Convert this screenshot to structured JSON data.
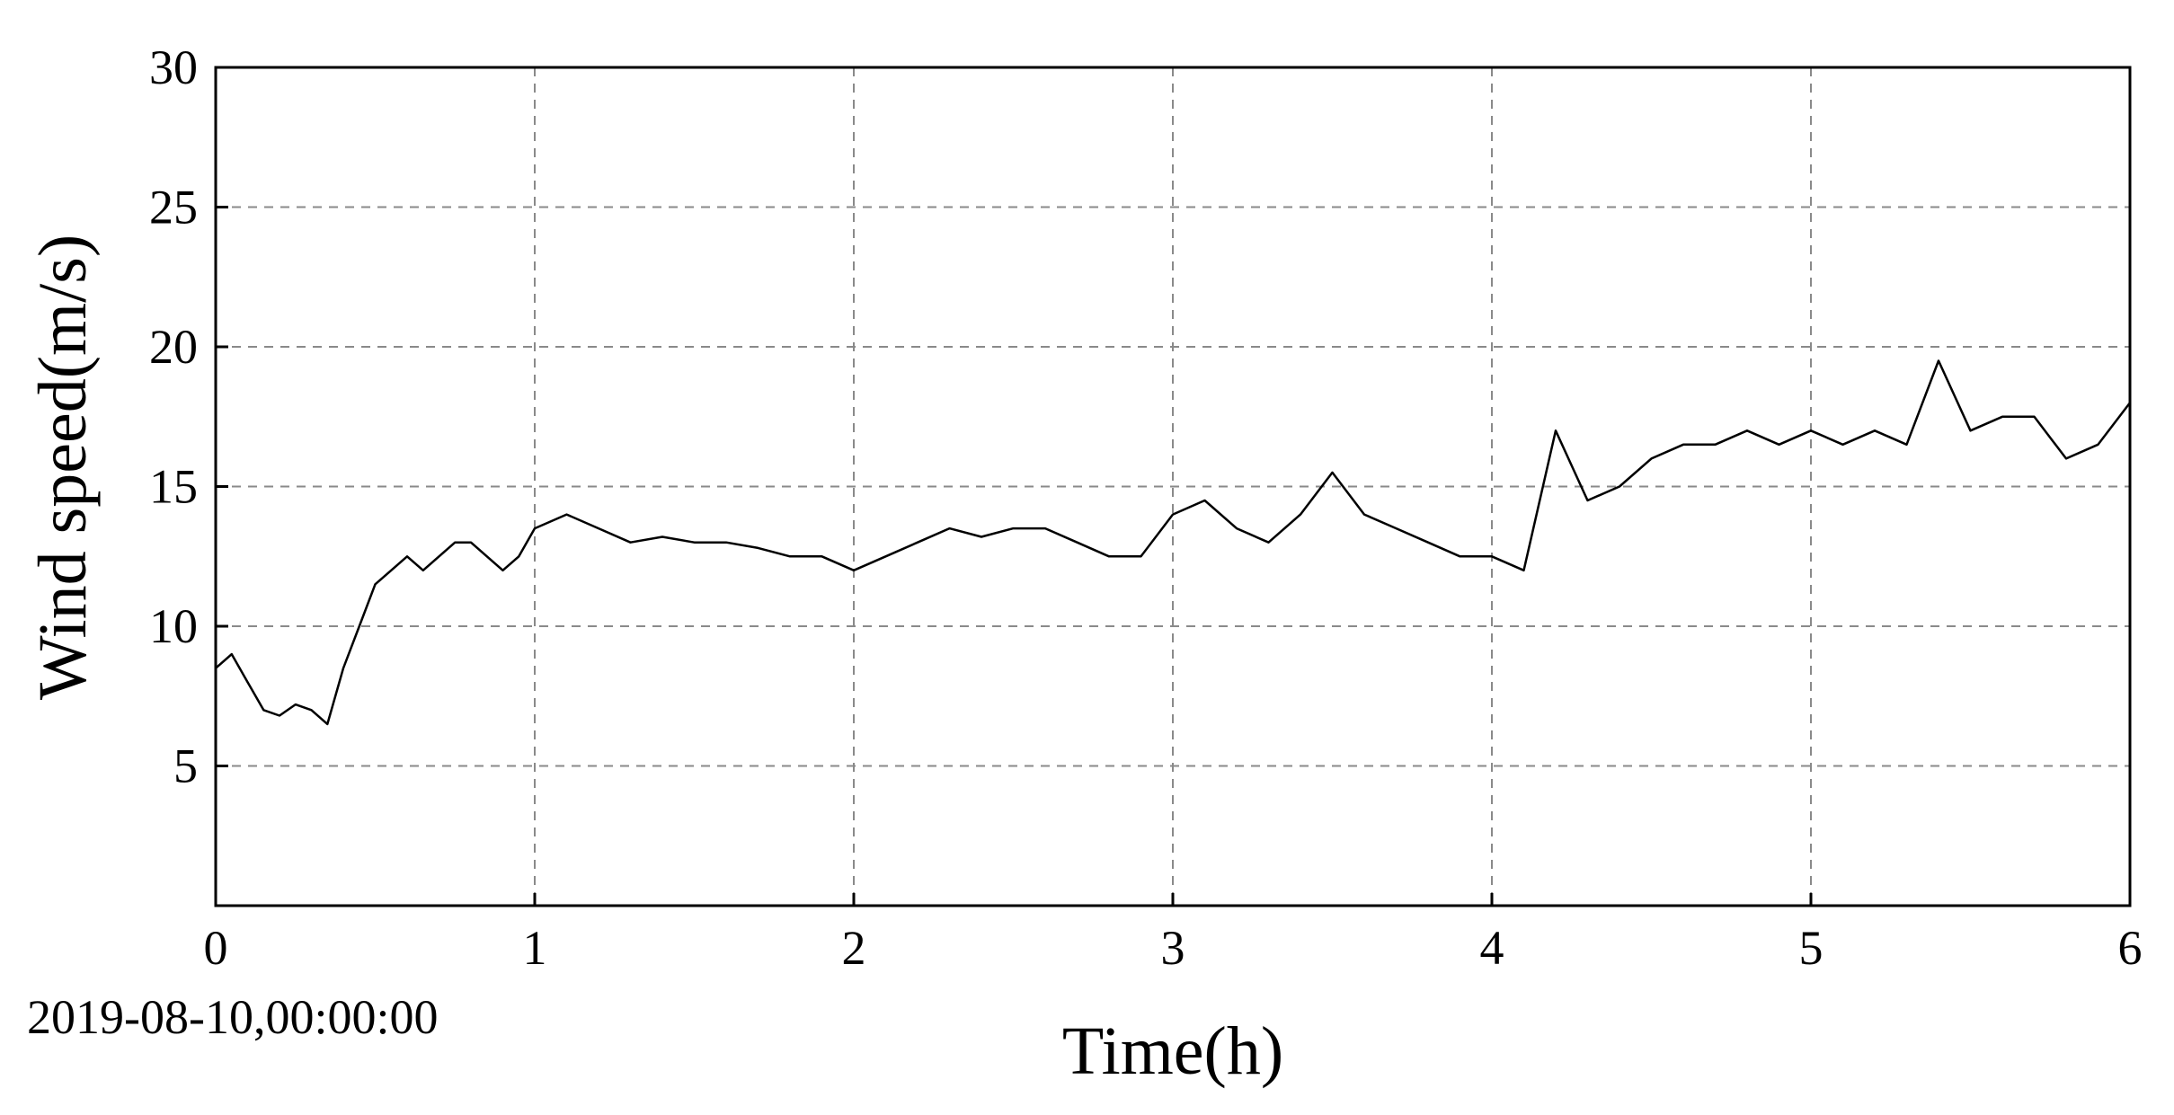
{
  "chart_data": {
    "type": "line",
    "xlabel": "Time(h)",
    "ylabel": "Wind speed(m/s)",
    "start_timestamp": "2019-08-10,00:00:00",
    "xlim": [
      0,
      6
    ],
    "ylim": [
      0,
      30
    ],
    "xticks": [
      "0",
      "1",
      "2",
      "3",
      "4",
      "5",
      "6"
    ],
    "yticks": [
      "5",
      "10",
      "15",
      "20",
      "25",
      "30"
    ],
    "grid": true,
    "series": [
      {
        "color": "#000000",
        "x": [
          0,
          0.05,
          0.1,
          0.15,
          0.2,
          0.25,
          0.3,
          0.35,
          0.4,
          0.45,
          0.5,
          0.55,
          0.6,
          0.65,
          0.7,
          0.75,
          0.8,
          0.85,
          0.9,
          0.95,
          1.0,
          1.1,
          1.2,
          1.3,
          1.4,
          1.5,
          1.6,
          1.7,
          1.8,
          1.9,
          2.0,
          2.1,
          2.2,
          2.3,
          2.4,
          2.5,
          2.6,
          2.7,
          2.8,
          2.9,
          3.0,
          3.1,
          3.2,
          3.3,
          3.4,
          3.5,
          3.6,
          3.7,
          3.8,
          3.9,
          4.0,
          4.1,
          4.2,
          4.3,
          4.4,
          4.5,
          4.6,
          4.7,
          4.8,
          4.9,
          5.0,
          5.1,
          5.2,
          5.3,
          5.4,
          5.5,
          5.6,
          5.7,
          5.8,
          5.9,
          6.0
        ],
        "y": [
          8.5,
          9.0,
          8.0,
          7.0,
          6.8,
          7.2,
          7.0,
          6.5,
          8.5,
          10.0,
          11.5,
          12.0,
          12.5,
          12.0,
          12.5,
          13.0,
          13.0,
          12.5,
          12.0,
          12.5,
          13.5,
          14.0,
          13.5,
          13.0,
          13.2,
          13.0,
          13.0,
          12.8,
          12.5,
          12.5,
          12.0,
          12.5,
          13.0,
          13.5,
          13.2,
          13.5,
          13.5,
          13.0,
          12.5,
          12.5,
          14.0,
          14.5,
          13.5,
          13.0,
          14.0,
          15.5,
          14.0,
          13.5,
          13.0,
          12.5,
          12.5,
          12.0,
          17.0,
          14.5,
          15.0,
          16.0,
          16.5,
          16.5,
          17.0,
          16.5,
          17.0,
          16.5,
          17.0,
          16.5,
          19.5,
          17.0,
          17.5,
          17.5,
          16.0,
          16.5,
          18.0
        ]
      }
    ]
  }
}
